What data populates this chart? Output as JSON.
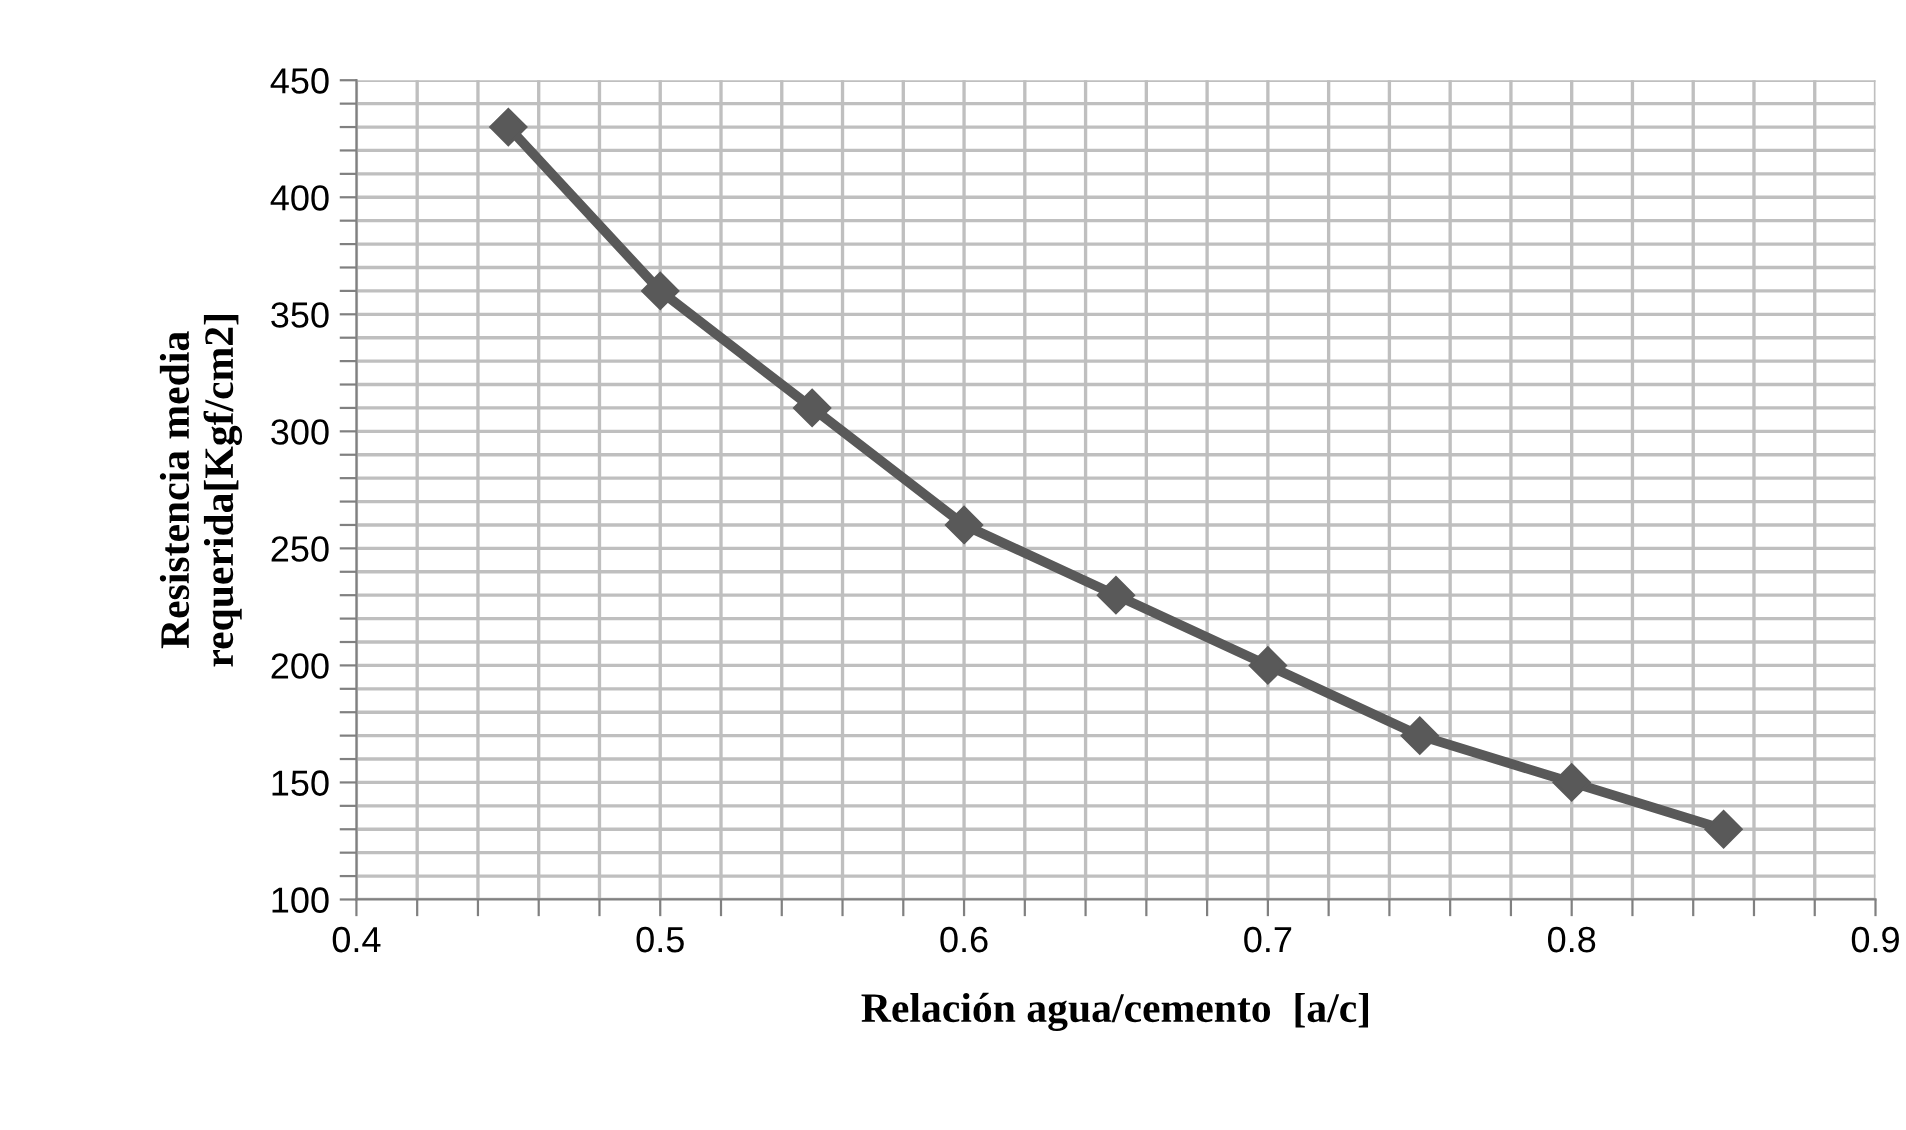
{
  "chart_data": {
    "type": "line",
    "xlabel": "Relación agua/cemento  [a/c]",
    "ylabel": "Resistencia media\nrequerida[Kgf/cm2]",
    "x": [
      0.45,
      0.5,
      0.55,
      0.6,
      0.65,
      0.7,
      0.75,
      0.8,
      0.85
    ],
    "series": [
      {
        "color": "#595959",
        "values": [
          430,
          360,
          310,
          260,
          230,
          200,
          170,
          150,
          130
        ]
      }
    ],
    "xlim": [
      0.4,
      0.9
    ],
    "xticks": [
      0.4,
      {
        "value": 0.42,
        "label": null
      },
      {
        "value": 0.44,
        "label": null
      },
      {
        "value": 0.46,
        "label": null
      },
      {
        "value": 0.48,
        "label": null
      },
      0.5,
      {
        "value": 0.52,
        "label": null
      },
      {
        "value": 0.54,
        "label": null
      },
      {
        "value": 0.56,
        "label": null
      },
      {
        "value": 0.58,
        "label": null
      },
      0.6,
      {
        "value": 0.62,
        "label": null
      },
      {
        "value": 0.64,
        "label": null
      },
      {
        "value": 0.66,
        "label": null
      },
      {
        "value": 0.68,
        "label": null
      },
      0.7,
      {
        "value": 0.72,
        "label": null
      },
      {
        "value": 0.74,
        "label": null
      },
      {
        "value": 0.76,
        "label": null
      },
      {
        "value": 0.78,
        "label": null
      },
      0.8,
      {
        "value": 0.82,
        "label": null
      },
      {
        "value": 0.84,
        "label": null
      },
      {
        "value": 0.86,
        "label": null
      },
      {
        "value": 0.88,
        "label": null
      },
      0.9
    ],
    "ylim": [
      100,
      450
    ],
    "yticks": [
      100,
      {
        "value": 110,
        "label": null
      },
      {
        "value": 120,
        "label": null
      },
      {
        "value": 130,
        "label": null
      },
      {
        "value": 140,
        "label": null
      },
      150,
      {
        "value": 160,
        "label": null
      },
      {
        "value": 170,
        "label": null
      },
      {
        "value": 180,
        "label": null
      },
      {
        "value": 190,
        "label": null
      },
      200,
      {
        "value": 210,
        "label": null
      },
      {
        "value": 220,
        "label": null
      },
      {
        "value": 230,
        "label": null
      },
      {
        "value": 240,
        "label": null
      },
      250,
      {
        "value": 260,
        "label": null
      },
      {
        "value": 270,
        "label": null
      },
      {
        "value": 280,
        "label": null
      },
      {
        "value": 290,
        "label": null
      },
      300,
      {
        "value": 310,
        "label": null
      },
      {
        "value": 320,
        "label": null
      },
      {
        "value": 330,
        "label": null
      },
      {
        "value": 340,
        "label": null
      },
      350,
      {
        "value": 360,
        "label": null
      },
      {
        "value": 370,
        "label": null
      },
      {
        "value": 380,
        "label": null
      },
      {
        "value": 390,
        "label": null
      },
      400,
      {
        "value": 410,
        "label": null
      },
      {
        "value": 420,
        "label": null
      },
      {
        "value": 430,
        "label": null
      },
      {
        "value": 440,
        "label": null
      },
      450
    ],
    "grid": true,
    "marker": "diamond",
    "line_style": "solid",
    "legend": false
  }
}
